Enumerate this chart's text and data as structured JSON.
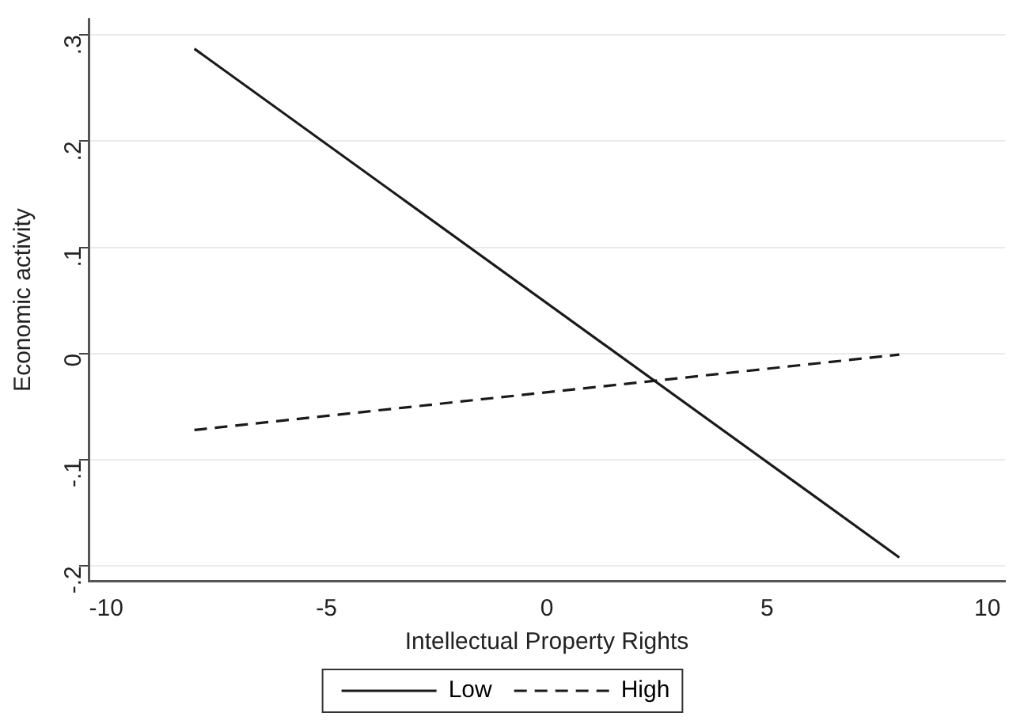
{
  "chart_data": {
    "type": "line",
    "xlabel": "Intellectual Property Rights",
    "ylabel": "Economic activity",
    "xlim": [
      -10.4,
      10.4
    ],
    "xticks": [
      -10,
      -5,
      0,
      5,
      10
    ],
    "ylim": [
      -0.214,
      0.315
    ],
    "yticks": [
      {
        "value": -0.2,
        "label": "-.2"
      },
      {
        "value": -0.1,
        "label": "-.1"
      },
      0,
      {
        "value": 0.1,
        "label": ".1"
      },
      {
        "value": 0.2,
        "label": ".2"
      },
      {
        "value": 0.3,
        "label": ".3"
      }
    ],
    "x": [
      -8,
      8
    ],
    "grid": "y",
    "legend": "bottom",
    "marker": "none",
    "series": [
      {
        "name": "Low",
        "color": "#1a1a1a",
        "values": [
          0.287,
          -0.192
        ],
        "line_style": "solid"
      },
      {
        "name": "High",
        "color": "#1a1a1a",
        "values": [
          -0.072,
          -0.001
        ],
        "line_style": "dashed"
      }
    ]
  }
}
